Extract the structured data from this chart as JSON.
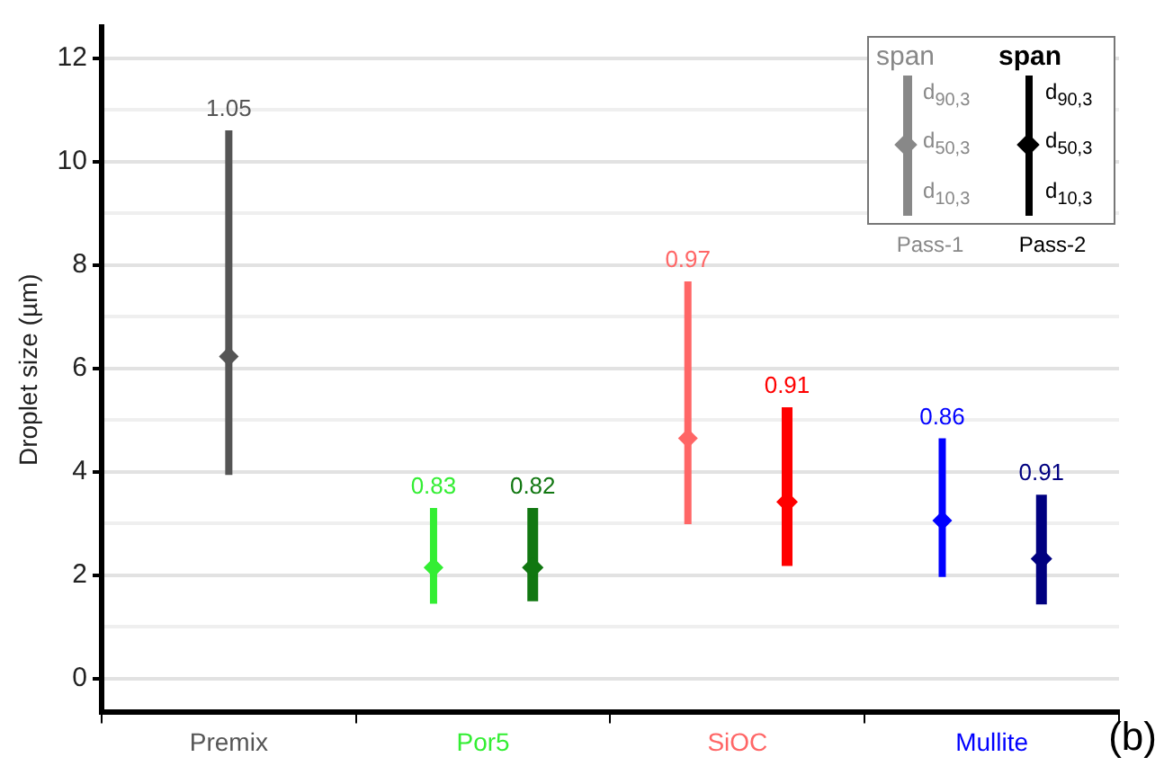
{
  "chart_data": {
    "type": "bar",
    "ylabel": "Droplet size (µm)",
    "categories": [
      "Premix",
      "Por5",
      "SiOC",
      "Mullite"
    ],
    "series": [
      {
        "colors": [
          "#555555",
          "#33ee33",
          "#ff6666",
          "#0000ff"
        ],
        "base": [
          3.94,
          1.45,
          2.99,
          1.97
        ],
        "values": [
          6.66,
          1.85,
          4.69,
          2.68
        ]
      },
      {
        "colors": [
          "#000000",
          "#117711",
          "#ff0000",
          "#000080"
        ],
        "base": [
          null,
          1.5,
          2.18,
          1.44
        ],
        "values": [
          null,
          1.8,
          3.07,
          2.12
        ]
      },
      {
        "type": "scatter",
        "colors": [
          "#555555",
          "#33ee33",
          "#ff6666",
          "#0000ff"
        ],
        "values": [
          6.23,
          2.15,
          4.65,
          3.06
        ]
      },
      {
        "type": "scatter",
        "colors": [
          null,
          "#117711",
          "#ff0000",
          "#000080"
        ],
        "values": [
          null,
          2.15,
          3.42,
          2.32
        ]
      }
    ],
    "ylim": [
      -0.65,
      12.6
    ],
    "yticks": [
      0,
      {
        "value": 1,
        "label": null
      },
      2,
      {
        "value": 3,
        "label": null
      },
      4,
      {
        "value": 5,
        "label": null
      },
      6,
      {
        "value": 7,
        "label": null
      },
      8,
      {
        "value": 9,
        "label": null
      },
      10,
      {
        "value": 11,
        "label": null
      },
      12
    ],
    "grid": "y",
    "marker": "diamond",
    "annotations": [
      "span",
      "d$_{90,3}$",
      "d$_{50,3}$",
      "d$_{10,3}$",
      "Pass-1",
      "Pass-2",
      "(b)",
      "1.05",
      "0.83",
      "0.82",
      "0.97",
      "0.91",
      "0.86",
      "0.91"
    ]
  }
}
